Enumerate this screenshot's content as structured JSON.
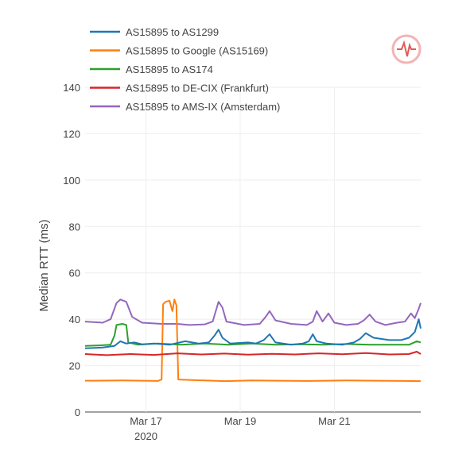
{
  "chart_data": {
    "type": "line",
    "title": "",
    "xlabel": "",
    "ylabel": "Median RTT (ms)",
    "ylim": [
      0,
      140
    ],
    "yticks": [
      0,
      20,
      40,
      60,
      80,
      100,
      120,
      140
    ],
    "xlim": [
      "2020-03-15 17:00",
      "2020-03-22 20:00"
    ],
    "xticks": [
      {
        "date": "2020-03-17",
        "label": "Mar 17",
        "sub": "2020"
      },
      {
        "date": "2020-03-19",
        "label": "Mar 19",
        "sub": ""
      },
      {
        "date": "2020-03-21",
        "label": "Mar 21",
        "sub": ""
      }
    ],
    "grid": true,
    "legend_position": "top-left",
    "logo": "ihr-pulse-logo",
    "series": [
      {
        "name": "AS15895 to AS1299",
        "color": "#1f77b4",
        "points": [
          [
            "2020-03-15 17:00",
            27.5
          ],
          [
            "2020-03-16 02:00",
            27.8
          ],
          [
            "2020-03-16 08:00",
            28.5
          ],
          [
            "2020-03-16 11:00",
            30.5
          ],
          [
            "2020-03-16 14:00",
            29.5
          ],
          [
            "2020-03-16 18:00",
            30.0
          ],
          [
            "2020-03-16 22:00",
            29.2
          ],
          [
            "2020-03-17 04:00",
            29.5
          ],
          [
            "2020-03-17 12:00",
            29.0
          ],
          [
            "2020-03-17 20:00",
            30.5
          ],
          [
            "2020-03-18 03:00",
            29.5
          ],
          [
            "2020-03-18 08:00",
            30.0
          ],
          [
            "2020-03-18 11:00",
            33.0
          ],
          [
            "2020-03-18 13:00",
            35.5
          ],
          [
            "2020-03-18 15:00",
            32.0
          ],
          [
            "2020-03-18 19:00",
            29.5
          ],
          [
            "2020-03-19 04:00",
            30.0
          ],
          [
            "2020-03-19 08:00",
            29.5
          ],
          [
            "2020-03-19 12:00",
            31.0
          ],
          [
            "2020-03-19 15:00",
            33.5
          ],
          [
            "2020-03-19 18:00",
            30.0
          ],
          [
            "2020-03-20 02:00",
            29.0
          ],
          [
            "2020-03-20 08:00",
            29.5
          ],
          [
            "2020-03-20 11:00",
            30.5
          ],
          [
            "2020-03-20 13:00",
            33.5
          ],
          [
            "2020-03-20 15:00",
            30.5
          ],
          [
            "2020-03-20 20:00",
            29.5
          ],
          [
            "2020-03-21 04:00",
            29.0
          ],
          [
            "2020-03-21 10:00",
            30.0
          ],
          [
            "2020-03-21 13:00",
            31.5
          ],
          [
            "2020-03-21 16:00",
            34.0
          ],
          [
            "2020-03-21 20:00",
            32.0
          ],
          [
            "2020-03-22 04:00",
            31.0
          ],
          [
            "2020-03-22 10:00",
            31.0
          ],
          [
            "2020-03-22 14:00",
            32.0
          ],
          [
            "2020-03-22 17:00",
            34.5
          ],
          [
            "2020-03-22 19:00",
            40.0
          ],
          [
            "2020-03-22 20:00",
            36.0
          ]
        ]
      },
      {
        "name": "AS15895 to Google (AS15169)",
        "color": "#ff7f0e",
        "points": [
          [
            "2020-03-15 17:00",
            13.5
          ],
          [
            "2020-03-16 12:00",
            13.6
          ],
          [
            "2020-03-17 06:00",
            13.4
          ],
          [
            "2020-03-17 08:00",
            14.0
          ],
          [
            "2020-03-17 08:45",
            46.5
          ],
          [
            "2020-03-17 10:00",
            47.5
          ],
          [
            "2020-03-17 12:00",
            48.0
          ],
          [
            "2020-03-17 13:30",
            43.5
          ],
          [
            "2020-03-17 14:30",
            48.5
          ],
          [
            "2020-03-17 15:30",
            46.0
          ],
          [
            "2020-03-17 16:30",
            14.0
          ],
          [
            "2020-03-18 06:00",
            13.6
          ],
          [
            "2020-03-18 16:00",
            13.3
          ],
          [
            "2020-03-19 06:00",
            13.6
          ],
          [
            "2020-03-19 20:00",
            13.5
          ],
          [
            "2020-03-20 12:00",
            13.4
          ],
          [
            "2020-03-21 06:00",
            13.6
          ],
          [
            "2020-03-21 22:00",
            13.5
          ],
          [
            "2020-03-22 12:00",
            13.4
          ],
          [
            "2020-03-22 20:00",
            13.3
          ]
        ]
      },
      {
        "name": "AS15895 to AS174",
        "color": "#2ca02c",
        "points": [
          [
            "2020-03-15 17:00",
            28.5
          ],
          [
            "2020-03-16 02:00",
            28.8
          ],
          [
            "2020-03-16 06:00",
            29.0
          ],
          [
            "2020-03-16 08:00",
            33.0
          ],
          [
            "2020-03-16 09:00",
            37.5
          ],
          [
            "2020-03-16 12:00",
            38.0
          ],
          [
            "2020-03-16 14:00",
            37.5
          ],
          [
            "2020-03-16 15:00",
            30.0
          ],
          [
            "2020-03-16 20:00",
            29.0
          ],
          [
            "2020-03-17 06:00",
            29.5
          ],
          [
            "2020-03-17 18:00",
            29.0
          ],
          [
            "2020-03-18 06:00",
            29.5
          ],
          [
            "2020-03-18 18:00",
            29.0
          ],
          [
            "2020-03-19 06:00",
            29.5
          ],
          [
            "2020-03-19 18:00",
            29.0
          ],
          [
            "2020-03-20 06:00",
            29.2
          ],
          [
            "2020-03-20 18:00",
            29.0
          ],
          [
            "2020-03-21 06:00",
            29.3
          ],
          [
            "2020-03-21 18:00",
            29.0
          ],
          [
            "2020-03-22 06:00",
            29.0
          ],
          [
            "2020-03-22 14:00",
            29.0
          ],
          [
            "2020-03-22 18:00",
            30.5
          ],
          [
            "2020-03-22 20:00",
            30.0
          ]
        ]
      },
      {
        "name": "AS15895 to DE-CIX (Frankfurt)",
        "color": "#d62728",
        "points": [
          [
            "2020-03-15 17:00",
            25.0
          ],
          [
            "2020-03-16 04:00",
            24.5
          ],
          [
            "2020-03-16 16:00",
            25.0
          ],
          [
            "2020-03-17 04:00",
            24.6
          ],
          [
            "2020-03-17 16:00",
            25.3
          ],
          [
            "2020-03-18 04:00",
            24.8
          ],
          [
            "2020-03-18 16:00",
            25.2
          ],
          [
            "2020-03-19 04:00",
            24.7
          ],
          [
            "2020-03-19 16:00",
            25.1
          ],
          [
            "2020-03-20 04:00",
            24.8
          ],
          [
            "2020-03-20 16:00",
            25.3
          ],
          [
            "2020-03-21 04:00",
            24.9
          ],
          [
            "2020-03-21 16:00",
            25.4
          ],
          [
            "2020-03-22 04:00",
            24.8
          ],
          [
            "2020-03-22 14:00",
            25.0
          ],
          [
            "2020-03-22 18:00",
            26.0
          ],
          [
            "2020-03-22 20:00",
            25.0
          ]
        ]
      },
      {
        "name": "AS15895 to AMS-IX (Amsterdam)",
        "color": "#9467bd",
        "points": [
          [
            "2020-03-15 17:00",
            39.0
          ],
          [
            "2020-03-16 02:00",
            38.5
          ],
          [
            "2020-03-16 06:00",
            40.0
          ],
          [
            "2020-03-16 09:00",
            47.0
          ],
          [
            "2020-03-16 11:00",
            48.5
          ],
          [
            "2020-03-16 14:00",
            47.5
          ],
          [
            "2020-03-16 17:00",
            41.0
          ],
          [
            "2020-03-16 22:00",
            38.5
          ],
          [
            "2020-03-17 08:00",
            38.0
          ],
          [
            "2020-03-17 16:00",
            38.0
          ],
          [
            "2020-03-17 22:00",
            37.5
          ],
          [
            "2020-03-18 06:00",
            37.8
          ],
          [
            "2020-03-18 10:00",
            39.0
          ],
          [
            "2020-03-18 13:00",
            47.5
          ],
          [
            "2020-03-18 15:00",
            45.0
          ],
          [
            "2020-03-18 17:00",
            39.0
          ],
          [
            "2020-03-19 02:00",
            37.5
          ],
          [
            "2020-03-19 10:00",
            38.0
          ],
          [
            "2020-03-19 13:00",
            41.0
          ],
          [
            "2020-03-19 15:00",
            43.5
          ],
          [
            "2020-03-19 18:00",
            39.5
          ],
          [
            "2020-03-20 02:00",
            38.0
          ],
          [
            "2020-03-20 10:00",
            37.5
          ],
          [
            "2020-03-20 13:00",
            39.0
          ],
          [
            "2020-03-20 15:00",
            43.5
          ],
          [
            "2020-03-20 18:00",
            39.0
          ],
          [
            "2020-03-20 21:00",
            42.5
          ],
          [
            "2020-03-21 00:00",
            38.5
          ],
          [
            "2020-03-21 06:00",
            37.5
          ],
          [
            "2020-03-21 12:00",
            38.0
          ],
          [
            "2020-03-21 15:00",
            39.5
          ],
          [
            "2020-03-21 18:00",
            42.0
          ],
          [
            "2020-03-21 21:00",
            39.0
          ],
          [
            "2020-03-22 02:00",
            37.5
          ],
          [
            "2020-03-22 08:00",
            38.5
          ],
          [
            "2020-03-22 12:00",
            39.0
          ],
          [
            "2020-03-22 15:00",
            42.5
          ],
          [
            "2020-03-22 17:00",
            40.5
          ],
          [
            "2020-03-22 19:00",
            44.5
          ],
          [
            "2020-03-22 20:00",
            47.0
          ]
        ]
      }
    ]
  }
}
